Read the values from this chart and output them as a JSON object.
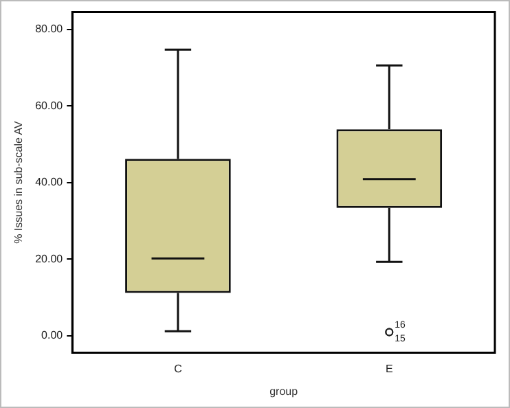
{
  "chart_data": {
    "type": "box",
    "xlabel": "group",
    "ylabel": "% Issues in sub-scale AV",
    "categories": [
      "C",
      "E"
    ],
    "color": "#d4cf95",
    "boxes": [
      {
        "low": 1.2,
        "q1": 11.2,
        "median": 20.2,
        "q3": 46.2,
        "high": 74.7
      },
      {
        "low": 19.3,
        "q1": 33.4,
        "median": 40.9,
        "q3": 53.9,
        "high": 70.6,
        "outliers": [
          1,
          1
        ]
      }
    ],
    "ylim": [
      -4.4,
      84.5
    ],
    "yticks": [
      {
        "value": 0,
        "label": "0.00"
      },
      {
        "value": 20,
        "label": "20.00"
      },
      {
        "value": 40,
        "label": "40.00"
      },
      {
        "value": 60,
        "label": "60.00"
      },
      {
        "value": 80,
        "label": "80.00"
      }
    ],
    "grid": false,
    "legend": false,
    "annotations": [
      "16",
      "15"
    ]
  }
}
